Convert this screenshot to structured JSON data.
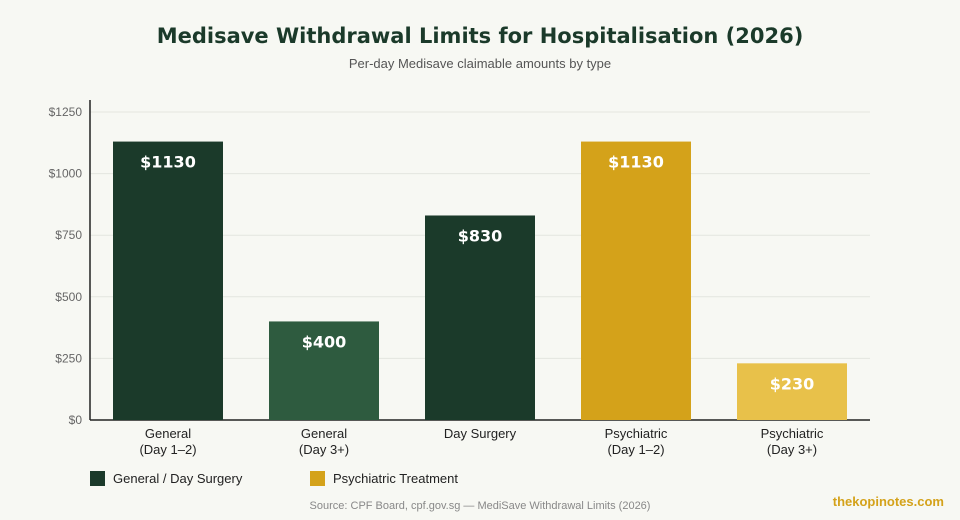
{
  "chart_data": {
    "type": "bar",
    "title": "Medisave Withdrawal Limits for Hospitalisation (2026)",
    "subtitle": "Per-day Medisave claimable amounts by type",
    "categories": [
      [
        "General",
        "(Day 1–2)"
      ],
      [
        "General",
        "(Day 3+)"
      ],
      [
        "Day Surgery"
      ],
      [
        "Psychiatric",
        "(Day 1–2)"
      ],
      [
        "Psychiatric",
        "(Day 3+)"
      ]
    ],
    "values": [
      1130,
      400,
      830,
      1130,
      230
    ],
    "value_labels": [
      "$1130",
      "$400",
      "$830",
      "$1130",
      "$230"
    ],
    "bar_colors": [
      "#1b3a2a",
      "#2e5b3f",
      "#1b3a2a",
      "#d4a21a",
      "#e8c14a"
    ],
    "yticks": [
      "$0",
      "$250",
      "$500",
      "$750",
      "$1000",
      "$1250"
    ],
    "ytick_values": [
      0,
      250,
      500,
      750,
      1000,
      1250
    ],
    "ylim": [
      0,
      1250
    ],
    "xlabel": "",
    "ylabel": "",
    "grid": true,
    "legend": [
      {
        "label": "General / Day Surgery",
        "color": "#1b3a2a"
      },
      {
        "label": "Psychiatric Treatment",
        "color": "#d4a21a"
      }
    ],
    "legend_placement": "bottom-left"
  },
  "source": "Source: CPF Board, cpf.gov.sg — MediSave Withdrawal Limits (2026)",
  "brand": "thekopinotes.com"
}
